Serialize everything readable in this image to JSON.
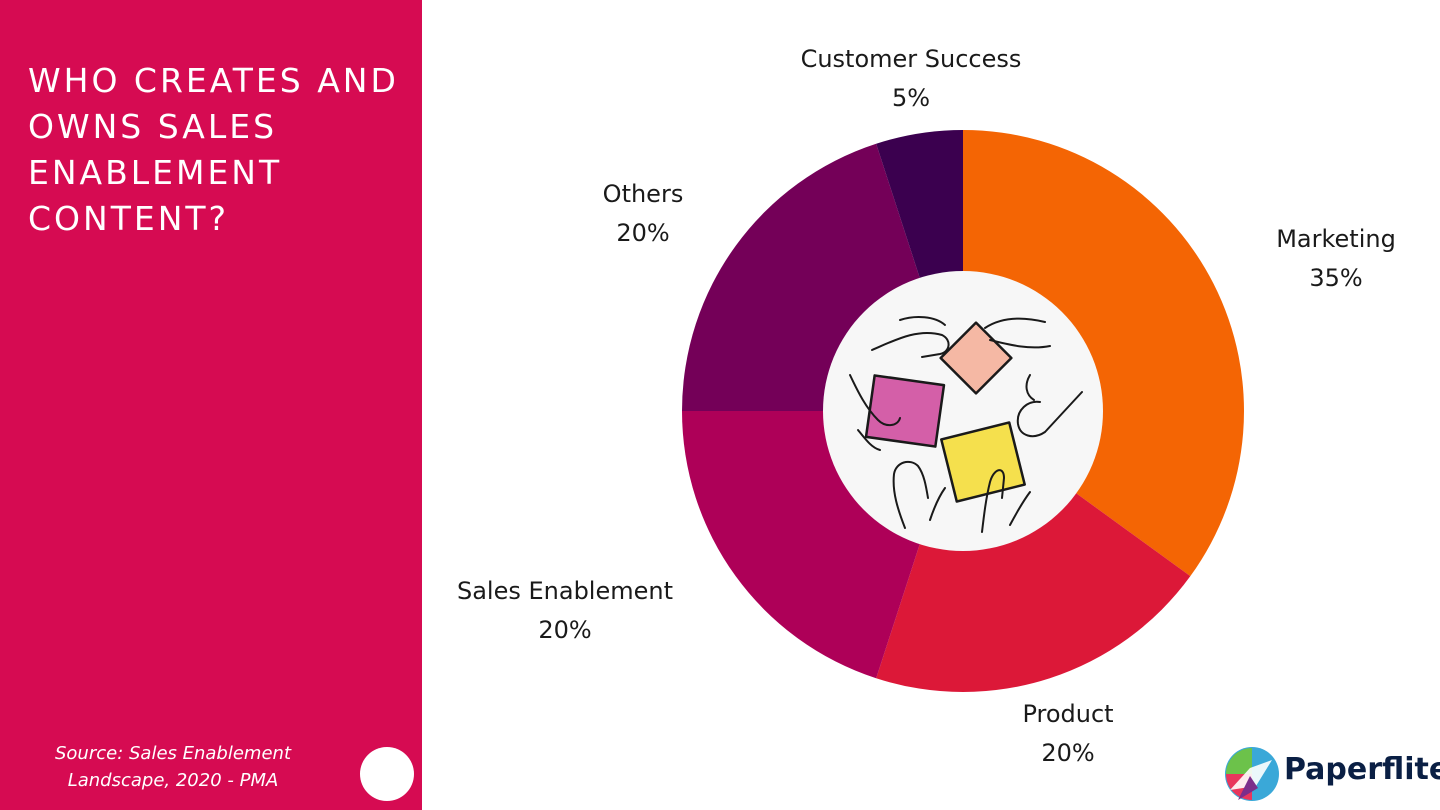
{
  "title": "WHO CREATES AND OWNS SALES ENABLEMENT CONTENT?",
  "source": "Source: Sales Enablement Landscape, 2020 - PMA",
  "brand": {
    "name": "Paperflite",
    "icon": "paperflite-logo-icon",
    "colors": [
      "#3aa8d8",
      "#6cc24a",
      "#e8365d",
      "#7b2d8b"
    ]
  },
  "colors": {
    "panel": "#d60b52",
    "center_circle": "#f7f7f7"
  },
  "center_image": {
    "icon": "hands-holding-sticky-notes-illustration",
    "note_colors": [
      "#f5b8a4",
      "#d45fa8",
      "#f5e04d"
    ]
  },
  "chart_data": {
    "type": "pie",
    "title": "WHO CREATES AND OWNS SALES ENABLEMENT CONTENT?",
    "donut": true,
    "start_angle_deg": 0,
    "direction": "clockwise",
    "slices": [
      {
        "label": "Marketing",
        "value": 35,
        "value_label": "35%",
        "color": "#f46504"
      },
      {
        "label": "Product",
        "value": 20,
        "value_label": "20%",
        "color": "#dc1838"
      },
      {
        "label": "Sales Enablement",
        "value": 20,
        "value_label": "20%",
        "color": "#ae0058"
      },
      {
        "label": "Others",
        "value": 20,
        "value_label": "20%",
        "color": "#740058"
      },
      {
        "label": "Customer Success",
        "value": 5,
        "value_label": "5%",
        "color": "#3b004f"
      }
    ]
  }
}
